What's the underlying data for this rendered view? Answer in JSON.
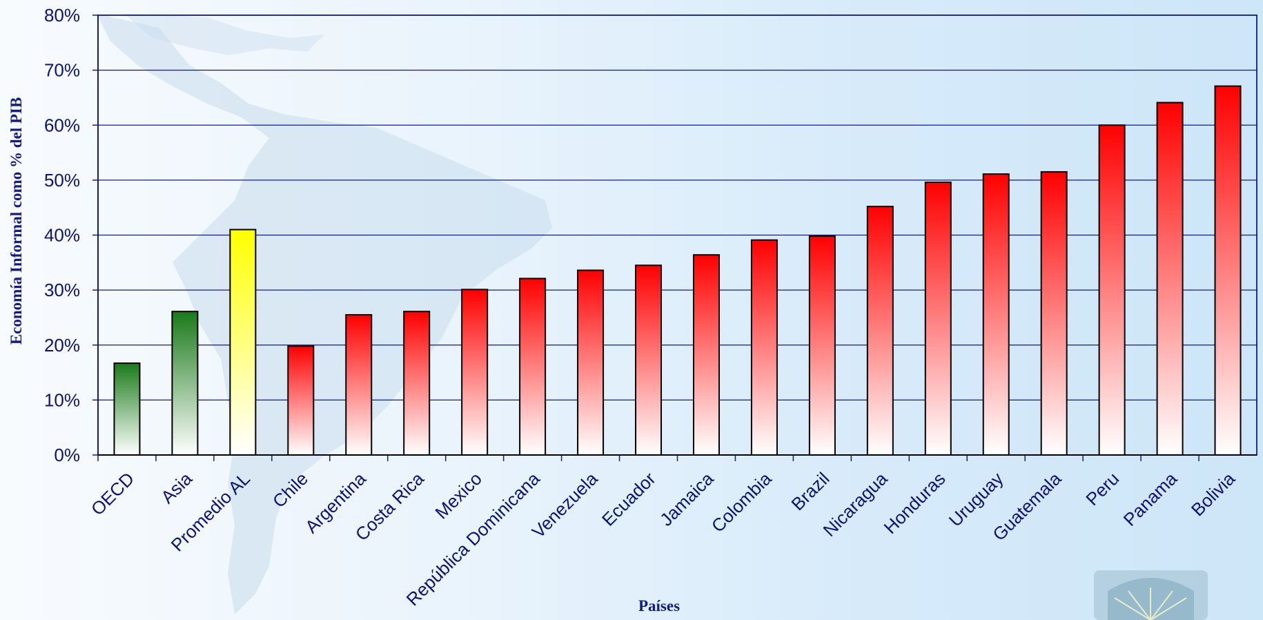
{
  "chart_data": {
    "type": "bar",
    "title": "",
    "xlabel": "Países",
    "ylabel": "Economía Informal como % del PIB",
    "ylim": [
      0,
      80
    ],
    "yticks": [
      "0%",
      "10%",
      "20%",
      "30%",
      "40%",
      "50%",
      "60%",
      "70%",
      "80%"
    ],
    "grid": true,
    "legend": "none",
    "categories": [
      "OECD",
      "Asia",
      "Promedio AL",
      "Chile",
      "Argentina",
      "Costa Rica",
      "Mexico",
      "República Dominicana",
      "Venezuela",
      "Ecuador",
      "Jamaica",
      "Colombia",
      "Brazil",
      "Nicaragua",
      "Honduras",
      "Uruguay",
      "Guatemala",
      "Peru",
      "Panama",
      "Bolivia"
    ],
    "values": [
      16.7,
      26.1,
      41.0,
      19.8,
      25.5,
      26.1,
      30.1,
      32.1,
      33.6,
      34.5,
      36.4,
      39.1,
      39.8,
      45.2,
      49.6,
      51.1,
      51.5,
      60.0,
      64.1,
      67.1
    ],
    "bar_colors": [
      "#1a7a1a",
      "#1a7a1a",
      "#ffff00",
      "#ff0000",
      "#ff0000",
      "#ff0000",
      "#ff0000",
      "#ff0000",
      "#ff0000",
      "#ff0000",
      "#ff0000",
      "#ff0000",
      "#ff0000",
      "#ff0000",
      "#ff0000",
      "#ff0000",
      "#ff0000",
      "#ff0000",
      "#ff0000",
      "#ff0000"
    ],
    "axis_color": "#141a8c",
    "label_color": "#0d1280"
  }
}
